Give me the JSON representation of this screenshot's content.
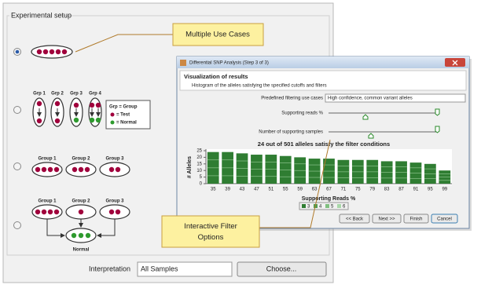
{
  "panel": {
    "title": "Experimental setup",
    "interpretation_label": "Interpretation",
    "interpretation_value": "All Samples",
    "choose_button": "Choose..."
  },
  "option2": {
    "labels": [
      "Grp 1",
      "Grp 2",
      "Grp 3",
      "Grp 4"
    ],
    "legend": [
      "Grp = Group",
      "= Test",
      "= Normal"
    ]
  },
  "option3": {
    "labels": [
      "Group 1",
      "Group 2",
      "Group 3"
    ]
  },
  "option4": {
    "labels": [
      "Group 1",
      "Group 2",
      "Group 3"
    ],
    "normal": "Normal"
  },
  "callouts": [
    "Multiple Use Cases",
    "Interactive Filter Options"
  ],
  "dialog": {
    "title": "Differential SNP Analysis (Step 3 of 3)",
    "header": "Visualization of results",
    "subheader": "Histogram of the alleles satisfying the specified cutoffs and filters",
    "use_case_label": "Predefined filtering use cases",
    "use_case_value": "High confidence, common variant alleles",
    "reads_label": "Supporting reads %",
    "samples_label": "Number of supporting samples",
    "summary": "24 out of 501 alleles satisfy the filter conditions",
    "buttons": [
      "<< Back",
      "Next >>",
      "Finish",
      "Cancel"
    ]
  },
  "histogram": {
    "y_label": "# Alleles",
    "x_label": "Supporting Reads %",
    "categories": [
      35,
      39,
      43,
      47,
      51,
      55,
      59,
      63,
      67,
      71,
      75,
      79,
      83,
      87,
      91,
      95,
      99
    ],
    "values": [
      24,
      24,
      23,
      22,
      22,
      21,
      20,
      19,
      19,
      18,
      18,
      18,
      17,
      17,
      16,
      15,
      10
    ],
    "ylim": [
      0,
      25
    ],
    "yticks": [
      0,
      5,
      10,
      15,
      20,
      25
    ],
    "color": "#2f7d32",
    "legend": [
      "3",
      "4",
      "5",
      "6"
    ]
  }
}
